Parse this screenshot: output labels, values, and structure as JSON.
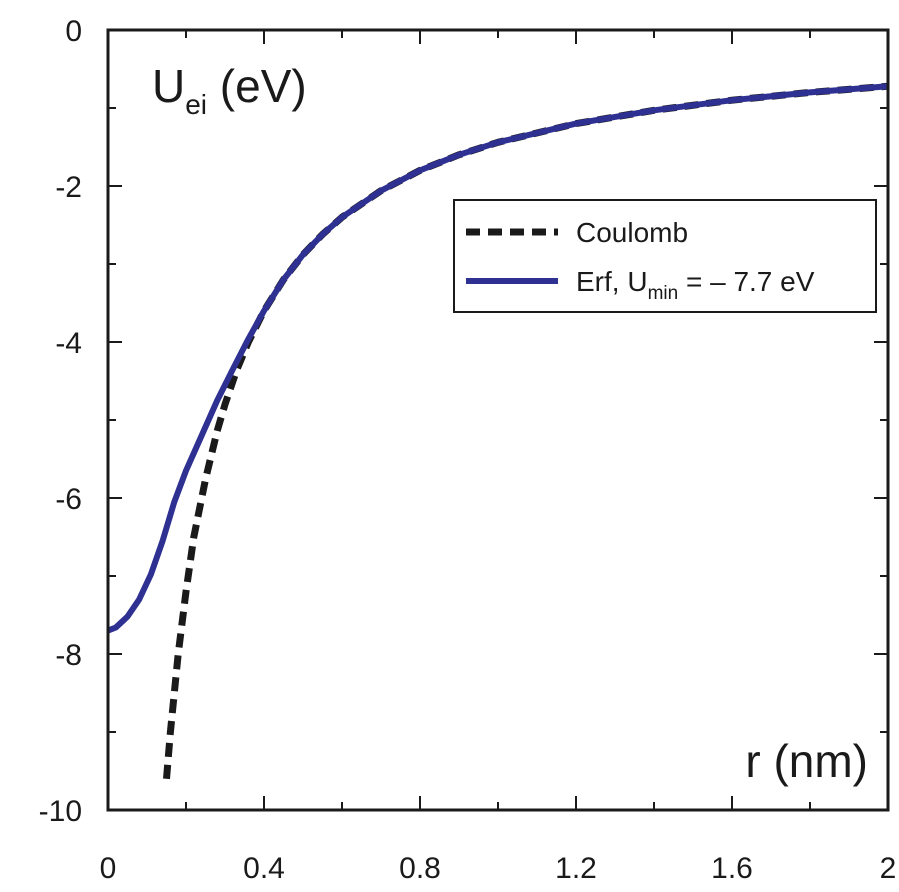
{
  "chart_data": {
    "type": "line",
    "x_axis_label": "r (nm)",
    "y_axis_label": {
      "main": "U",
      "subscript": "ei",
      "unit": " (eV)"
    },
    "xlim": [
      0,
      2
    ],
    "ylim": [
      -10,
      0
    ],
    "x_ticks": [
      {
        "value": 0,
        "label": "0"
      },
      {
        "value": 0.4,
        "label": "0.4"
      },
      {
        "value": 0.8,
        "label": "0.8"
      },
      {
        "value": 1.2,
        "label": "1.2"
      },
      {
        "value": 1.6,
        "label": "1.6"
      },
      {
        "value": 2,
        "label": "2"
      }
    ],
    "x_minor_step": 0.2,
    "y_ticks": [
      {
        "value": 0,
        "label": "0"
      },
      {
        "value": -2,
        "label": "-2"
      },
      {
        "value": -4,
        "label": "-4"
      },
      {
        "value": -6,
        "label": "-6"
      },
      {
        "value": -8,
        "label": "-8"
      },
      {
        "value": -10,
        "label": "-10"
      }
    ],
    "y_minor_step": 1,
    "grid": false,
    "legend_position": "upper-right",
    "series": [
      {
        "name": "Coulomb",
        "color": "#1a1a1a",
        "style": "dashed",
        "x": [
          0.15,
          0.16,
          0.18,
          0.2,
          0.22,
          0.25,
          0.28,
          0.3,
          0.33,
          0.36,
          0.4,
          0.45,
          0.5,
          0.55,
          0.6,
          0.7,
          0.8,
          0.9,
          1.0,
          1.2,
          1.4,
          1.6,
          1.8,
          2.0
        ],
        "y": [
          -9.6,
          -9.0,
          -8.0,
          -7.2,
          -6.5,
          -5.76,
          -5.14,
          -4.8,
          -4.36,
          -4.0,
          -3.6,
          -3.2,
          -2.88,
          -2.62,
          -2.4,
          -2.06,
          -1.8,
          -1.6,
          -1.44,
          -1.2,
          -1.03,
          -0.9,
          -0.8,
          -0.72
        ]
      },
      {
        "name": "Erf, U_min = – 7.7 eV",
        "legend_parts": {
          "main": "Erf, U",
          "subscript": "min",
          "rest": " = – 7.7 eV"
        },
        "color": "#2e3192",
        "style": "solid",
        "x": [
          0.0,
          0.02,
          0.05,
          0.08,
          0.11,
          0.14,
          0.17,
          0.2,
          0.24,
          0.28,
          0.32,
          0.36,
          0.4,
          0.45,
          0.5,
          0.55,
          0.6,
          0.7,
          0.8,
          0.9,
          1.0,
          1.2,
          1.4,
          1.6,
          1.8,
          2.0
        ],
        "y": [
          -7.7,
          -7.66,
          -7.52,
          -7.3,
          -6.98,
          -6.55,
          -6.05,
          -5.65,
          -5.2,
          -4.75,
          -4.35,
          -3.96,
          -3.6,
          -3.2,
          -2.88,
          -2.62,
          -2.4,
          -2.06,
          -1.8,
          -1.6,
          -1.44,
          -1.2,
          -1.03,
          -0.9,
          -0.8,
          -0.72
        ]
      }
    ]
  }
}
